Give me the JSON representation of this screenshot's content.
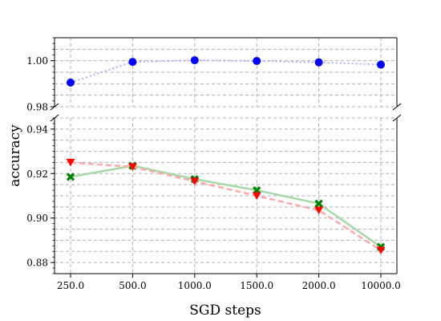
{
  "chart_data": {
    "type": "line",
    "xlabel": "SGD steps",
    "ylabel": "accuracy",
    "categories": [
      "250.0",
      "500.0",
      "1000.0",
      "1500.0",
      "2000.0",
      "10000.0"
    ],
    "grid": true,
    "broken_y_axis": true,
    "top_panel": {
      "ylim": [
        0.98,
        1.01
      ],
      "yticks": [
        0.98,
        1.0
      ],
      "ytick_labels": [
        "0.98",
        "1.00"
      ]
    },
    "bottom_panel": {
      "ylim": [
        0.875,
        0.945
      ],
      "yticks": [
        0.88,
        0.9,
        0.92,
        0.94
      ],
      "ytick_labels": [
        "0.88",
        "0.90",
        "0.92",
        "0.94"
      ]
    },
    "series": [
      {
        "values": [
          0.9905,
          0.9995,
          1.0002,
          0.9999,
          0.9993,
          0.9983
        ],
        "panel": "top",
        "color": "#0000ff",
        "line_color": "#aaaaff",
        "marker": "circle",
        "line_style": "dotted"
      },
      {
        "values": [
          0.9185,
          0.9235,
          0.9175,
          0.9125,
          0.9065,
          0.887
        ],
        "panel": "bottom",
        "color": "#008000",
        "line_color": "#a6d8a6",
        "marker": "x",
        "line_style": "solid"
      },
      {
        "values": [
          0.925,
          0.923,
          0.9165,
          0.91,
          0.9035,
          0.8855
        ],
        "panel": "bottom",
        "color": "#ff0000",
        "line_color": "#ffaaaa",
        "marker": "triangle-down",
        "line_style": "dashed"
      }
    ]
  }
}
